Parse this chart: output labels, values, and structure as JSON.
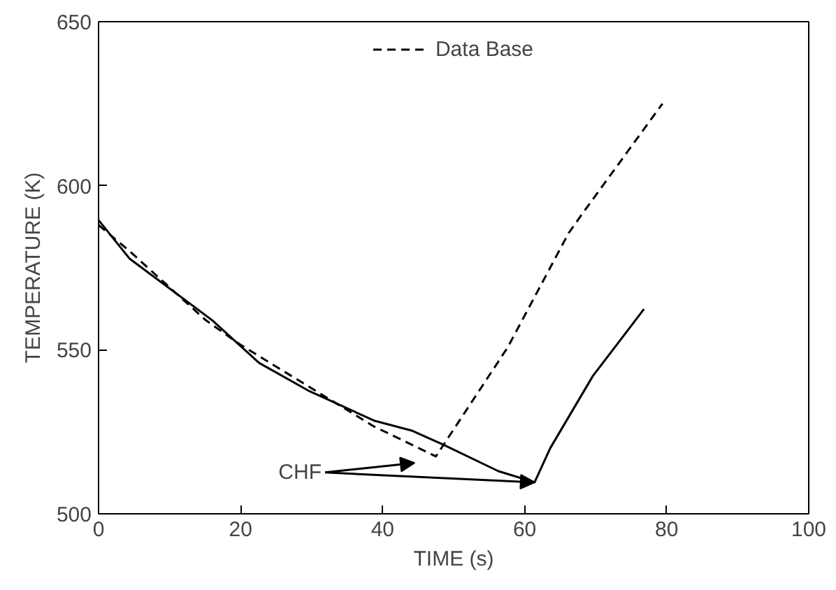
{
  "chart_data": {
    "type": "line",
    "xlabel": "TIME (s)",
    "ylabel": "TEMPERATURE (K)",
    "xlim": [
      0,
      100
    ],
    "ylim": [
      500,
      650
    ],
    "xticks": [
      0,
      20,
      40,
      60,
      80,
      100
    ],
    "yticks": [
      500,
      550,
      600,
      650
    ],
    "grid": false,
    "legend": "top",
    "marker": "none",
    "series": [
      {
        "color": "#000000",
        "line_style": "solid",
        "x": [
          0,
          4.4,
          16,
          22.6,
          29.5,
          38.8,
          44.2,
          48.6,
          56.3,
          61.4,
          63.6,
          69.6,
          76.8
        ],
        "values": [
          589.5,
          577.7,
          559,
          546,
          537.6,
          528.4,
          525.3,
          521,
          513,
          509.6,
          520,
          542,
          562.4
        ]
      },
      {
        "name": "Data Base",
        "color": "#000000",
        "line_style": "dashed",
        "x": [
          0,
          4.4,
          15.1,
          20,
          38.8,
          47.5,
          57.6,
          66.2,
          68.2,
          79.4
        ],
        "values": [
          588,
          580,
          559,
          551.5,
          526.6,
          517.5,
          550.7,
          585.6,
          591.7,
          625
        ]
      }
    ],
    "annotations": [
      {
        "text": "CHF",
        "x": 61.4,
        "y": 509.6
      }
    ]
  }
}
